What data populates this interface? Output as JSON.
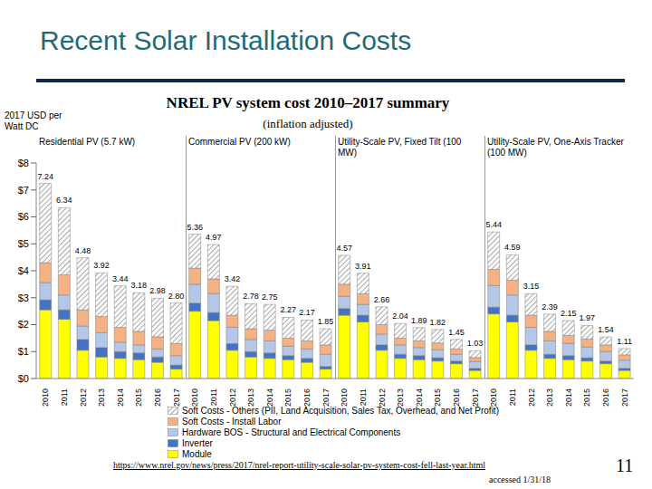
{
  "slide_title": "Recent Solar Installation Costs",
  "footer": {
    "source": "https://www.nrel.gov/news/press/2017/nrel-report-utility-scale-solar-pv-system-cost-fell-last-year.html",
    "accessed": "accessed 1/31/18",
    "page": 11
  },
  "chart_data": {
    "type": "bar",
    "stacked": true,
    "grid": false,
    "title": "NREL PV system cost 2010–2017 summary",
    "subtitle": "(inflation adjusted)",
    "y_label": "2017 USD per Watt DC",
    "groups": [
      "Residential PV (5.7 kW)",
      "Commercial PV (200 kW)",
      "Utility-Scale PV, Fixed Tilt (100 MW)",
      "Utility-Scale PV, One-Axis Tracker (100 MW)"
    ],
    "categories": [
      "2010",
      "2011",
      "2012",
      "2013",
      "2014",
      "2015",
      "2016",
      "2017",
      "2010",
      "2011",
      "2012",
      "2013",
      "2014",
      "2015",
      "2016",
      "2017",
      "2010",
      "2011",
      "2012",
      "2013",
      "2014",
      "2015",
      "2016",
      "2017",
      "2010",
      "2011",
      "2012",
      "2013",
      "2014",
      "2015",
      "2016",
      "2017"
    ],
    "series": [
      {
        "name": "Module",
        "color": "#ffff00",
        "values": [
          2.55,
          2.2,
          1.05,
          0.8,
          0.75,
          0.7,
          0.6,
          0.35,
          2.5,
          2.15,
          1.05,
          0.8,
          0.75,
          0.7,
          0.6,
          0.35,
          2.35,
          2.1,
          1.05,
          0.75,
          0.7,
          0.65,
          0.55,
          0.3,
          2.4,
          2.1,
          1.05,
          0.75,
          0.7,
          0.65,
          0.55,
          0.3
        ]
      },
      {
        "name": "Inverter",
        "color": "#4472c4",
        "values": [
          0.37,
          0.35,
          0.4,
          0.35,
          0.25,
          0.25,
          0.2,
          0.15,
          0.3,
          0.3,
          0.25,
          0.2,
          0.2,
          0.15,
          0.15,
          0.1,
          0.25,
          0.25,
          0.2,
          0.15,
          0.15,
          0.12,
          0.1,
          0.08,
          0.25,
          0.25,
          0.2,
          0.15,
          0.15,
          0.12,
          0.1,
          0.08
        ]
      },
      {
        "name": "Hardware BOS - Structural and Electrical Components",
        "color": "#b4c7e7",
        "values": [
          0.64,
          0.55,
          0.5,
          0.55,
          0.35,
          0.3,
          0.3,
          0.35,
          0.7,
          0.7,
          0.6,
          0.45,
          0.45,
          0.35,
          0.35,
          0.45,
          0.45,
          0.4,
          0.4,
          0.35,
          0.3,
          0.3,
          0.25,
          0.25,
          0.8,
          0.75,
          0.65,
          0.5,
          0.45,
          0.4,
          0.35,
          0.3
        ]
      },
      {
        "name": "Soft Costs - Install Labor",
        "color": "#f4b183",
        "values": [
          0.74,
          0.75,
          0.6,
          0.6,
          0.55,
          0.5,
          0.45,
          0.45,
          0.6,
          0.55,
          0.45,
          0.4,
          0.4,
          0.3,
          0.3,
          0.35,
          0.45,
          0.4,
          0.35,
          0.25,
          0.25,
          0.25,
          0.2,
          0.15,
          0.6,
          0.55,
          0.45,
          0.35,
          0.3,
          0.3,
          0.25,
          0.2
        ]
      },
      {
        "name": "Soft Costs - Others (PII, Land Acquisition, Sales Tax, Overhead, and Net Profit)",
        "color": "#a6a6a6",
        "values": [
          2.94,
          2.49,
          1.93,
          1.62,
          1.54,
          1.43,
          1.43,
          1.5,
          1.26,
          1.27,
          1.07,
          0.93,
          0.95,
          0.77,
          0.77,
          0.6,
          1.07,
          0.76,
          0.66,
          0.54,
          0.49,
          0.5,
          0.35,
          0.25,
          1.39,
          0.94,
          0.8,
          0.64,
          0.55,
          0.5,
          0.29,
          0.23
        ]
      }
    ],
    "total_labels": [
      "7.24",
      "6.34",
      "4.48",
      "3.92",
      "3.44",
      "3.18",
      "2.98",
      "2.80",
      "5.36",
      "4.97",
      "3.42",
      "2.78",
      "2.75",
      "2.27",
      "2.17",
      "1.85",
      "4.57",
      "3.91",
      "2.66",
      "2.04",
      "1.89",
      "1.82",
      "1.45",
      "1.03",
      "5.44",
      "4.59",
      "3.15",
      "2.39",
      "2.15",
      "1.97",
      "1.54",
      "1.11"
    ],
    "ylim": [
      0,
      8
    ],
    "yticks": [
      {
        "value": 0,
        "label": "$0"
      },
      {
        "value": 1,
        "label": "$1"
      },
      {
        "value": 2,
        "label": "$2"
      },
      {
        "value": 3,
        "label": "$3"
      },
      {
        "value": 4,
        "label": "$4"
      },
      {
        "value": 5,
        "label": "$5"
      },
      {
        "value": 6,
        "label": "$6"
      },
      {
        "value": 7,
        "label": "$7"
      },
      {
        "value": 8,
        "label": "$8"
      }
    ]
  }
}
